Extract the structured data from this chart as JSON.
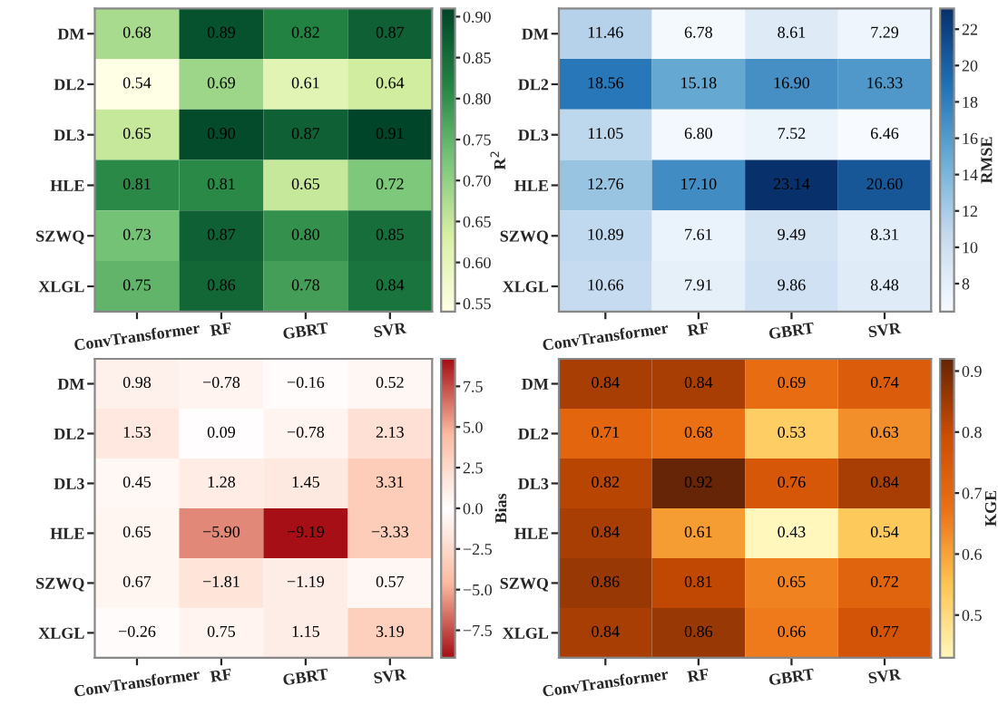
{
  "chart_data": [
    {
      "type": "heatmap",
      "clabel": "R$^{2}$",
      "categories": [
        "ConvTransformer",
        "RF",
        "GBRT",
        "SVR"
      ],
      "y_categories": [
        "DM",
        "DL2",
        "DL3",
        "HLE",
        "SZWQ",
        "XLGL"
      ],
      "cells": [
        [
          0.68,
          0.89,
          0.82,
          0.87
        ],
        [
          0.54,
          0.69,
          0.61,
          0.64
        ],
        [
          0.65,
          0.9,
          0.87,
          0.91
        ],
        [
          0.81,
          0.81,
          0.65,
          0.72
        ],
        [
          0.73,
          0.87,
          0.8,
          0.85
        ],
        [
          0.75,
          0.86,
          0.78,
          0.84
        ]
      ],
      "clim": [
        0.54,
        0.91
      ],
      "cticks": [
        {
          "value": 0.55,
          "label": "0.55"
        },
        {
          "value": 0.6,
          "label": "0.60"
        },
        {
          "value": 0.65,
          "label": "0.65"
        },
        {
          "value": 0.7,
          "label": "0.70"
        },
        {
          "value": 0.75,
          "label": "0.75"
        },
        {
          "value": 0.8,
          "label": "0.80"
        },
        {
          "value": 0.85,
          "label": "0.85"
        },
        {
          "value": 0.9,
          "label": "0.90"
        }
      ],
      "cell_labels": [
        [
          "0.68",
          "0.89",
          "0.82",
          "0.87"
        ],
        [
          "0.54",
          "0.69",
          "0.61",
          "0.64"
        ],
        [
          "0.65",
          "0.90",
          "0.87",
          "0.91"
        ],
        [
          "0.81",
          "0.81",
          "0.65",
          "0.72"
        ],
        [
          "0.73",
          "0.87",
          "0.80",
          "0.85"
        ],
        [
          "0.75",
          "0.86",
          "0.78",
          "0.84"
        ]
      ],
      "colors": [
        "#ffffe5",
        "#d9f0a3",
        "#78c679",
        "#238443",
        "#004529"
      ],
      "data_labels": true
    },
    {
      "type": "heatmap",
      "clabel": "RMSE",
      "categories": [
        "ConvTransformer",
        "RF",
        "GBRT",
        "SVR"
      ],
      "y_categories": [
        "DM",
        "DL2",
        "DL3",
        "HLE",
        "SZWQ",
        "XLGL"
      ],
      "cells": [
        [
          11.46,
          6.78,
          8.61,
          7.29
        ],
        [
          18.56,
          15.18,
          16.9,
          16.33
        ],
        [
          11.05,
          6.8,
          7.52,
          6.46
        ],
        [
          12.76,
          17.1,
          23.14,
          20.6
        ],
        [
          10.89,
          7.61,
          9.49,
          8.31
        ],
        [
          10.66,
          7.91,
          9.86,
          8.48
        ]
      ],
      "clim": [
        6.46,
        23.14
      ],
      "cticks": [
        8,
        10,
        12,
        14,
        16,
        18,
        20,
        22
      ],
      "cell_labels": [
        [
          "11.46",
          "6.78",
          "8.61",
          "7.29"
        ],
        [
          "18.56",
          "15.18",
          "16.90",
          "16.33"
        ],
        [
          "11.05",
          "6.80",
          "7.52",
          "6.46"
        ],
        [
          "12.76",
          "17.10",
          "23.14",
          "20.60"
        ],
        [
          "10.89",
          "7.61",
          "9.49",
          "8.31"
        ],
        [
          "10.66",
          "7.91",
          "9.86",
          "8.48"
        ]
      ],
      "colors": [
        "#f7fbff",
        "#c6dbef",
        "#6baed6",
        "#2171b5",
        "#08306b"
      ],
      "data_labels": true
    },
    {
      "type": "heatmap",
      "clabel": "Bias",
      "categories": [
        "ConvTransformer",
        "RF",
        "GBRT",
        "SVR"
      ],
      "y_categories": [
        "DM",
        "DL2",
        "DL3",
        "HLE",
        "SZWQ",
        "XLGL"
      ],
      "cells": [
        [
          0.98,
          -0.78,
          -0.16,
          0.52
        ],
        [
          1.53,
          0.09,
          -0.78,
          2.13
        ],
        [
          0.45,
          1.28,
          1.45,
          3.31
        ],
        [
          0.65,
          -5.9,
          -9.19,
          -3.33
        ],
        [
          0.67,
          -1.81,
          -1.19,
          0.57
        ],
        [
          -0.26,
          0.75,
          1.15,
          3.19
        ]
      ],
      "clim": [
        -9.19,
        9.19
      ],
      "cticks": [
        {
          "value": -7.5,
          "label": "−7.5"
        },
        {
          "value": -5,
          "label": "−5.0"
        },
        {
          "value": -2.5,
          "label": "−2.5"
        },
        {
          "value": 0,
          "label": "0.0"
        },
        {
          "value": 2.5,
          "label": "2.5"
        },
        {
          "value": 5,
          "label": "5.0"
        },
        {
          "value": 7.5,
          "label": "7.5"
        }
      ],
      "cell_labels": [
        [
          "0.98",
          "−0.78",
          "−0.16",
          "0.52"
        ],
        [
          "1.53",
          "0.09",
          "−0.78",
          "2.13"
        ],
        [
          "0.45",
          "1.28",
          "1.45",
          "3.31"
        ],
        [
          "0.65",
          "−5.90",
          "−9.19",
          "−3.33"
        ],
        [
          "0.67",
          "−1.81",
          "−1.19",
          "0.57"
        ],
        [
          "−0.26",
          "0.75",
          "1.15",
          "3.19"
        ]
      ],
      "colors": [
        "#a50f15",
        "#fcbba1",
        "#ffffff",
        "#fcbba1",
        "#a50f15"
      ],
      "data_labels": true
    },
    {
      "type": "heatmap",
      "clabel": "KGE",
      "categories": [
        "ConvTransformer",
        "RF",
        "GBRT",
        "SVR"
      ],
      "y_categories": [
        "DM",
        "DL2",
        "DL3",
        "HLE",
        "SZWQ",
        "XLGL"
      ],
      "cells": [
        [
          0.84,
          0.84,
          0.69,
          0.74
        ],
        [
          0.71,
          0.68,
          0.53,
          0.63
        ],
        [
          0.82,
          0.92,
          0.76,
          0.84
        ],
        [
          0.84,
          0.61,
          0.43,
          0.54
        ],
        [
          0.86,
          0.81,
          0.65,
          0.72
        ],
        [
          0.84,
          0.86,
          0.66,
          0.77
        ]
      ],
      "clim": [
        0.43,
        0.92
      ],
      "cticks": [
        0.5,
        0.6,
        0.7,
        0.8,
        0.9
      ],
      "colors": [
        "#fff7bc",
        "#fec44f",
        "#ec7014",
        "#cc4c02",
        "#662506"
      ],
      "data_labels": true
    }
  ]
}
